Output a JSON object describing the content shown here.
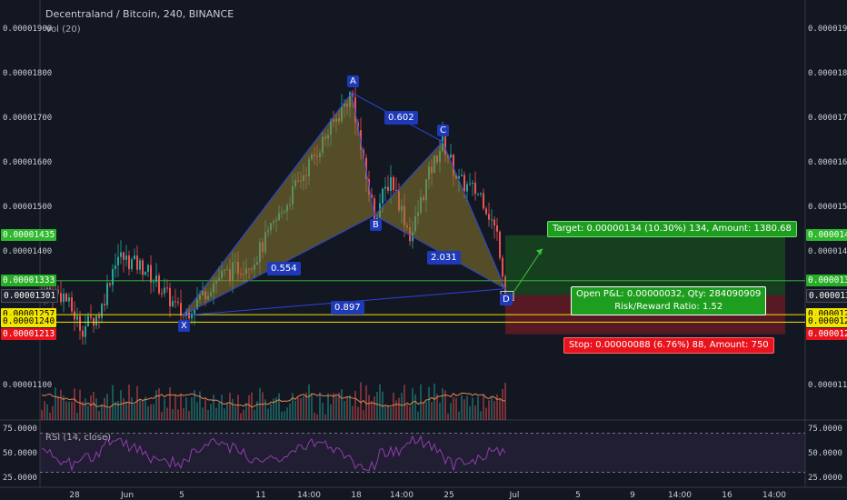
{
  "header": {
    "title": "Decentraland / Bitcoin, 240, BINANCE",
    "volume_indicator": "Vol (20)",
    "rsi_indicator": "RSI (14, close)"
  },
  "price_axis": {
    "ticks": [
      "0.00001900",
      "0.00001800",
      "0.00001700",
      "0.00001600",
      "0.00001500",
      "0.00001400",
      "0.00001100"
    ],
    "price_values": [
      1.9e-05,
      1.8e-05,
      1.7e-05,
      1.6e-05,
      1.5e-05,
      1.4e-05,
      1.1e-05
    ],
    "tags": [
      {
        "label": "0.00001435",
        "value": 1.435e-05,
        "bg": "#2db82d",
        "fg": "#ffffff"
      },
      {
        "label": "0.00001333",
        "value": 1.333e-05,
        "bg": "#27ae27",
        "fg": "#ffffff"
      },
      {
        "label": "0.00001301",
        "value": 1.301e-05,
        "bg": "#1e222d",
        "fg": "#ffffff"
      },
      {
        "label": "0.00001257",
        "value": 1.257e-05,
        "bg": "#f2e600",
        "fg": "#000000"
      },
      {
        "label": "0.00001240",
        "value": 1.24e-05,
        "bg": "#f2e600",
        "fg": "#000000"
      },
      {
        "label": "0.00001213",
        "value": 1.213e-05,
        "bg": "#e8131c",
        "fg": "#ffffff"
      }
    ]
  },
  "rsi_axis": {
    "ticks": [
      "75.0000",
      "50.0000",
      "25.0000"
    ],
    "values": [
      75,
      50,
      25
    ]
  },
  "time_axis": {
    "labels": [
      "28",
      "Jun",
      "5",
      "11",
      "14:00",
      "18",
      "14:00",
      "25",
      "Jul",
      "5",
      "9",
      "14:00",
      "16",
      "14:00"
    ]
  },
  "pattern": {
    "points": [
      {
        "label": "X",
        "price": 1.255e-05
      },
      {
        "label": "A",
        "price": 1.755e-05
      },
      {
        "label": "B",
        "price": 1.48e-05
      },
      {
        "label": "C",
        "price": 1.645e-05
      },
      {
        "label": "D",
        "price": 1.315e-05
      }
    ],
    "ratios": [
      {
        "id": "xab",
        "label": "0.554"
      },
      {
        "id": "abc",
        "label": "0.602"
      },
      {
        "id": "bcd",
        "label": "2.031"
      },
      {
        "id": "xad",
        "label": "0.897"
      }
    ]
  },
  "position": {
    "target_text": "Target: 0.00000134 (10.30%) 134, Amount: 1380.68",
    "pnl_text": "Open P&L: 0.00000032, Qty: 284090909",
    "ratio_text": "Risk/Reward Ratio: 1.52",
    "stop_text": "Stop: 0.00000088 (6.76%) 88, Amount: 750",
    "target_price": 1.435e-05,
    "entry_price": 1.301e-05,
    "stop_price": 1.213e-05
  },
  "colors": {
    "background": "#131722",
    "up": "#26a69a",
    "down": "#ef5350",
    "pattern_fill": "#8c7a2e",
    "pattern_line": "#2a46d9",
    "profit": "#1d8a1d",
    "loss": "#c71e24",
    "yellow_line": "#f2e600",
    "green_line": "#3ac43a",
    "rsi": "#8e3fa8",
    "vol_ma": "#e0884f"
  }
}
